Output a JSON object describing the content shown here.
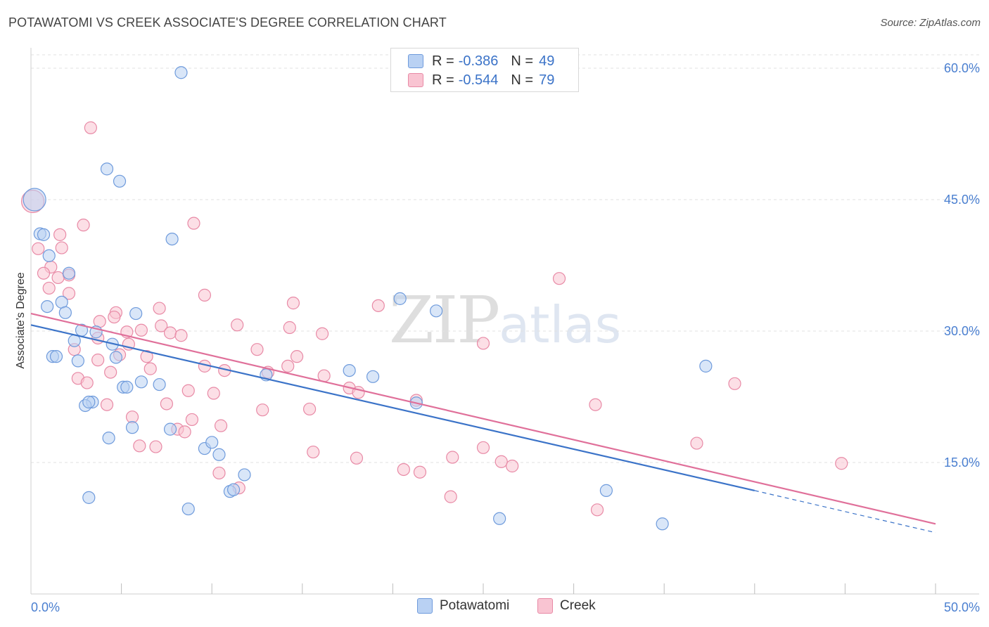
{
  "title": "POTAWATOMI VS CREEK ASSOCIATE'S DEGREE CORRELATION CHART",
  "source": "Source: ZipAtlas.com",
  "watermark": {
    "zip": "ZIP",
    "atlas": "atlas"
  },
  "legend": {
    "series": [
      {
        "name": "Potawatomi",
        "r_label": "R =",
        "r_value": "-0.386",
        "n_label": "N =",
        "n_value": "49",
        "fill": "#b9d1f3",
        "stroke": "#6f9bdc"
      },
      {
        "name": "Creek",
        "r_label": "R =",
        "r_value": "-0.544",
        "n_label": "N =",
        "n_value": "79",
        "fill": "#f9c4d2",
        "stroke": "#e88aa6"
      }
    ]
  },
  "chart_data": {
    "type": "scatter",
    "title": "POTAWATOMI VS CREEK ASSOCIATE'S DEGREE CORRELATION CHART",
    "xlabel": "",
    "ylabel": "Associate's Degree",
    "xlim": [
      0,
      50
    ],
    "ylim": [
      0,
      62
    ],
    "x_tick_labels": [
      {
        "value": 0,
        "label": "0.0%"
      },
      {
        "value": 50,
        "label": "50.0%"
      }
    ],
    "x_minor_ticks": [
      5,
      10,
      15,
      20,
      25,
      30,
      35,
      40,
      45,
      50
    ],
    "y_ticks": [
      {
        "value": 15,
        "label": "15.0%"
      },
      {
        "value": 30,
        "label": "30.0%"
      },
      {
        "value": 45,
        "label": "45.0%"
      },
      {
        "value": 60,
        "label": "60.0%"
      }
    ],
    "series": [
      {
        "name": "Potawatomi",
        "color": "#6f9bdc",
        "fill": "#b9d1f3",
        "trend": {
          "x0": 0,
          "y0": 30.7,
          "x1": 40,
          "y1": 11.8,
          "dash_to_x": 50,
          "dash_y": 7.0,
          "color": "#3b73c8"
        },
        "points": [
          [
            0.2,
            45.0
          ],
          [
            8.3,
            59.5
          ],
          [
            4.2,
            48.5
          ],
          [
            4.9,
            47.1
          ],
          [
            0.5,
            41.1
          ],
          [
            0.7,
            41.0
          ],
          [
            7.8,
            40.5
          ],
          [
            1.0,
            38.6
          ],
          [
            2.1,
            36.6
          ],
          [
            0.9,
            32.8
          ],
          [
            1.7,
            33.3
          ],
          [
            1.9,
            32.1
          ],
          [
            5.8,
            32.0
          ],
          [
            20.4,
            33.7
          ],
          [
            22.4,
            32.3
          ],
          [
            3.6,
            29.9
          ],
          [
            2.4,
            28.9
          ],
          [
            4.5,
            28.5
          ],
          [
            1.2,
            27.1
          ],
          [
            1.4,
            27.1
          ],
          [
            2.6,
            26.6
          ],
          [
            4.7,
            27.0
          ],
          [
            17.6,
            25.5
          ],
          [
            13.0,
            25.0
          ],
          [
            18.9,
            24.8
          ],
          [
            37.3,
            26.0
          ],
          [
            6.1,
            24.2
          ],
          [
            7.1,
            23.9
          ],
          [
            5.1,
            23.6
          ],
          [
            5.3,
            23.6
          ],
          [
            3.4,
            21.9
          ],
          [
            3.0,
            21.5
          ],
          [
            3.2,
            21.9
          ],
          [
            21.3,
            21.8
          ],
          [
            5.6,
            19.0
          ],
          [
            7.7,
            18.8
          ],
          [
            4.3,
            17.8
          ],
          [
            9.6,
            16.6
          ],
          [
            10.0,
            17.3
          ],
          [
            10.4,
            15.9
          ],
          [
            11.8,
            13.6
          ],
          [
            11.0,
            11.7
          ],
          [
            11.2,
            11.9
          ],
          [
            3.2,
            11.0
          ],
          [
            8.7,
            9.7
          ],
          [
            31.8,
            11.8
          ],
          [
            25.9,
            8.6
          ],
          [
            34.9,
            8.0
          ],
          [
            2.8,
            30.1
          ]
        ]
      },
      {
        "name": "Creek",
        "color": "#e88aa6",
        "fill": "#f9c4d2",
        "trend": {
          "x0": 0,
          "y0": 32.0,
          "x1": 50,
          "y1": 8.0,
          "color": "#e0709a"
        },
        "points": [
          [
            0.1,
            44.8
          ],
          [
            3.3,
            53.2
          ],
          [
            9.0,
            42.3
          ],
          [
            2.9,
            42.1
          ],
          [
            1.6,
            41.0
          ],
          [
            0.4,
            39.4
          ],
          [
            1.7,
            39.5
          ],
          [
            1.1,
            37.3
          ],
          [
            2.1,
            36.4
          ],
          [
            0.7,
            36.6
          ],
          [
            1.5,
            36.1
          ],
          [
            29.2,
            36.0
          ],
          [
            1.0,
            34.9
          ],
          [
            2.1,
            34.3
          ],
          [
            9.6,
            34.1
          ],
          [
            14.5,
            33.2
          ],
          [
            19.2,
            32.9
          ],
          [
            7.1,
            32.6
          ],
          [
            4.7,
            32.1
          ],
          [
            4.6,
            31.6
          ],
          [
            3.8,
            31.1
          ],
          [
            11.4,
            30.7
          ],
          [
            7.2,
            30.6
          ],
          [
            14.3,
            30.4
          ],
          [
            6.1,
            30.1
          ],
          [
            5.3,
            29.9
          ],
          [
            7.7,
            29.8
          ],
          [
            8.3,
            29.5
          ],
          [
            16.1,
            29.7
          ],
          [
            3.7,
            29.2
          ],
          [
            25.0,
            28.6
          ],
          [
            5.4,
            28.5
          ],
          [
            2.4,
            27.9
          ],
          [
            12.5,
            27.9
          ],
          [
            4.9,
            27.3
          ],
          [
            14.7,
            27.1
          ],
          [
            6.4,
            27.1
          ],
          [
            3.7,
            26.7
          ],
          [
            9.6,
            26.0
          ],
          [
            14.2,
            26.0
          ],
          [
            6.6,
            25.7
          ],
          [
            10.7,
            25.5
          ],
          [
            13.1,
            25.3
          ],
          [
            4.4,
            25.3
          ],
          [
            16.2,
            24.9
          ],
          [
            2.6,
            24.6
          ],
          [
            3.1,
            24.1
          ],
          [
            38.9,
            24.0
          ],
          [
            17.6,
            23.5
          ],
          [
            8.7,
            23.2
          ],
          [
            10.1,
            22.9
          ],
          [
            18.1,
            23.0
          ],
          [
            21.3,
            22.1
          ],
          [
            7.5,
            21.7
          ],
          [
            4.2,
            21.6
          ],
          [
            31.2,
            21.6
          ],
          [
            12.8,
            21.0
          ],
          [
            15.4,
            21.1
          ],
          [
            5.6,
            20.2
          ],
          [
            8.9,
            19.9
          ],
          [
            10.5,
            19.2
          ],
          [
            8.1,
            18.8
          ],
          [
            8.5,
            18.5
          ],
          [
            6.0,
            16.9
          ],
          [
            6.9,
            16.8
          ],
          [
            25.0,
            16.7
          ],
          [
            36.8,
            17.2
          ],
          [
            15.6,
            16.2
          ],
          [
            23.3,
            15.6
          ],
          [
            18.0,
            15.5
          ],
          [
            26.0,
            15.1
          ],
          [
            26.6,
            14.6
          ],
          [
            44.8,
            14.9
          ],
          [
            20.6,
            14.2
          ],
          [
            21.5,
            13.9
          ],
          [
            10.4,
            13.8
          ],
          [
            11.5,
            12.1
          ],
          [
            23.2,
            11.1
          ],
          [
            31.3,
            9.6
          ]
        ]
      }
    ]
  }
}
